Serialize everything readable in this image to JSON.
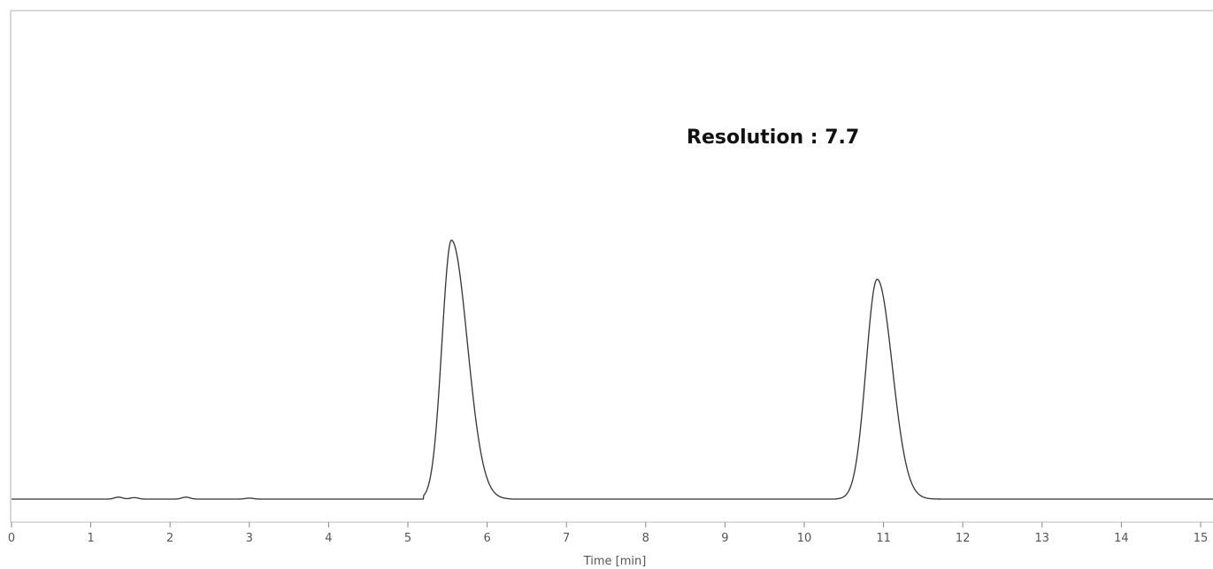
{
  "chart_data": {
    "type": "line",
    "title": "",
    "xlabel": "Time [min]",
    "ylabel": "",
    "xlim": [
      0,
      15
    ],
    "ylim": [
      0,
      1.0
    ],
    "x_ticks": [
      0,
      1,
      2,
      3,
      4,
      5,
      6,
      7,
      8,
      9,
      10,
      11,
      12,
      13,
      14,
      15
    ],
    "x_tick_labels": [
      "0",
      "1",
      "2",
      "3",
      "4",
      "5",
      "6",
      "7",
      "8",
      "9",
      "10",
      "11",
      "12",
      "13",
      "14",
      "15"
    ],
    "grid": false,
    "legend": "none",
    "annotation": "Resolution : 7.7",
    "line_color": "#333333",
    "series": [
      {
        "peaks": [
          {
            "time": 5.55,
            "height": 0.53,
            "sigma_left": 0.12,
            "sigma_right": 0.2,
            "start": 5.2,
            "end": 6.3
          },
          {
            "time": 10.92,
            "height": 0.45,
            "sigma_left": 0.14,
            "sigma_right": 0.19,
            "start": 10.4,
            "end": 11.75
          }
        ],
        "noise": [
          {
            "time": 1.35,
            "height": 0.004
          },
          {
            "time": 1.55,
            "height": 0.003
          },
          {
            "time": 2.2,
            "height": 0.004
          },
          {
            "time": 3.0,
            "height": 0.002
          }
        ]
      }
    ]
  }
}
